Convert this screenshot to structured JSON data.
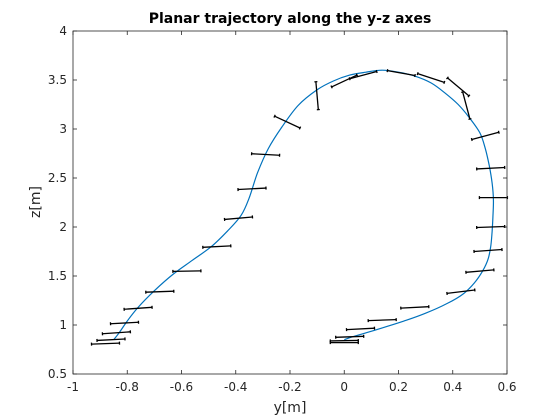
{
  "chart_data": {
    "type": "line",
    "title": "Planar trajectory along the y-z axes",
    "xlabel": "y[m]",
    "ylabel": "z[m]",
    "xlim": [
      -1,
      0.6
    ],
    "ylim": [
      0.5,
      4
    ],
    "grid": false,
    "box": true,
    "xticks": [
      -1,
      -0.8,
      -0.6,
      -0.4,
      -0.2,
      0,
      0.2,
      0.4,
      0.6
    ],
    "xtick_labels": [
      "-1",
      "-0.8",
      "-0.6",
      "-0.4",
      "-0.2",
      "0",
      "0.2",
      "0.4",
      "0.6"
    ],
    "yticks": [
      0.5,
      1,
      1.5,
      2,
      2.5,
      3,
      3.5,
      4
    ],
    "ytick_labels": [
      "0.5",
      "1",
      "1.5",
      "2",
      "2.5",
      "3",
      "3.5",
      "4"
    ],
    "colors": {
      "trajectory": "#0072BD",
      "links": "#000000",
      "axes": "#262626"
    },
    "series": [
      {
        "x": [
          -0.85,
          -0.83,
          -0.8,
          -0.76,
          -0.7,
          -0.63,
          -0.56,
          -0.49,
          -0.43,
          -0.38,
          -0.35,
          -0.32,
          -0.28,
          -0.23,
          -0.17,
          -0.1,
          -0.04,
          0.02,
          0.08,
          0.14,
          0.2,
          0.26,
          0.32,
          0.37,
          0.42,
          0.46,
          0.5,
          0.52,
          0.535,
          0.545,
          0.55,
          0.548,
          0.545,
          0.54,
          0.53,
          0.51,
          0.48,
          0.44,
          0.38,
          0.3,
          0.22,
          0.14,
          0.08,
          0.03,
          0.0
        ],
        "y": [
          0.85,
          0.92,
          1.04,
          1.18,
          1.35,
          1.52,
          1.66,
          1.8,
          1.96,
          2.12,
          2.3,
          2.55,
          2.8,
          3.02,
          3.24,
          3.4,
          3.49,
          3.55,
          3.58,
          3.6,
          3.58,
          3.54,
          3.47,
          3.37,
          3.25,
          3.12,
          2.96,
          2.8,
          2.62,
          2.45,
          2.28,
          2.1,
          1.95,
          1.8,
          1.67,
          1.55,
          1.43,
          1.32,
          1.22,
          1.12,
          1.04,
          0.97,
          0.92,
          0.88,
          0.85
        ]
      }
    ],
    "links": [
      {
        "y": -0.88,
        "z": 0.81,
        "angle": 2
      },
      {
        "y": -0.86,
        "z": 0.85,
        "angle": 3
      },
      {
        "y": -0.84,
        "z": 0.92,
        "angle": 4
      },
      {
        "y": -0.81,
        "z": 1.02,
        "angle": 3
      },
      {
        "y": -0.76,
        "z": 1.17,
        "angle": 4
      },
      {
        "y": -0.68,
        "z": 1.34,
        "angle": 2
      },
      {
        "y": -0.58,
        "z": 1.55,
        "angle": 1
      },
      {
        "y": -0.47,
        "z": 1.8,
        "angle": 3
      },
      {
        "y": -0.39,
        "z": 2.09,
        "angle": 5
      },
      {
        "y": -0.34,
        "z": 2.39,
        "angle": 3
      },
      {
        "y": -0.29,
        "z": 2.74,
        "angle": -3
      },
      {
        "y": -0.21,
        "z": 3.07,
        "angle": -25
      },
      {
        "y": -0.1,
        "z": 3.34,
        "angle": -85
      },
      {
        "y": 0.0,
        "z": 3.49,
        "angle": 25
      },
      {
        "y": 0.07,
        "z": 3.55,
        "angle": 15
      },
      {
        "y": 0.21,
        "z": 3.57,
        "angle": -10
      },
      {
        "y": 0.32,
        "z": 3.52,
        "angle": -18
      },
      {
        "y": 0.42,
        "z": 3.43,
        "angle": -40
      },
      {
        "y": 0.45,
        "z": 3.24,
        "angle": -75
      },
      {
        "y": 0.52,
        "z": 2.93,
        "angle": 15
      },
      {
        "y": 0.54,
        "z": 2.6,
        "angle": 3
      },
      {
        "y": 0.55,
        "z": 2.3,
        "angle": 0
      },
      {
        "y": 0.54,
        "z": 2.0,
        "angle": 2
      },
      {
        "y": 0.53,
        "z": 1.76,
        "angle": 4
      },
      {
        "y": 0.5,
        "z": 1.55,
        "angle": 5
      },
      {
        "y": 0.43,
        "z": 1.34,
        "angle": 7
      },
      {
        "y": 0.26,
        "z": 1.18,
        "angle": 3
      },
      {
        "y": 0.14,
        "z": 1.05,
        "angle": 2
      },
      {
        "y": 0.06,
        "z": 0.96,
        "angle": 3
      },
      {
        "y": 0.02,
        "z": 0.88,
        "angle": 2
      },
      {
        "y": 0.0,
        "z": 0.84,
        "angle": 1
      },
      {
        "y": 0.0,
        "z": 0.82,
        "angle": 0
      }
    ]
  }
}
